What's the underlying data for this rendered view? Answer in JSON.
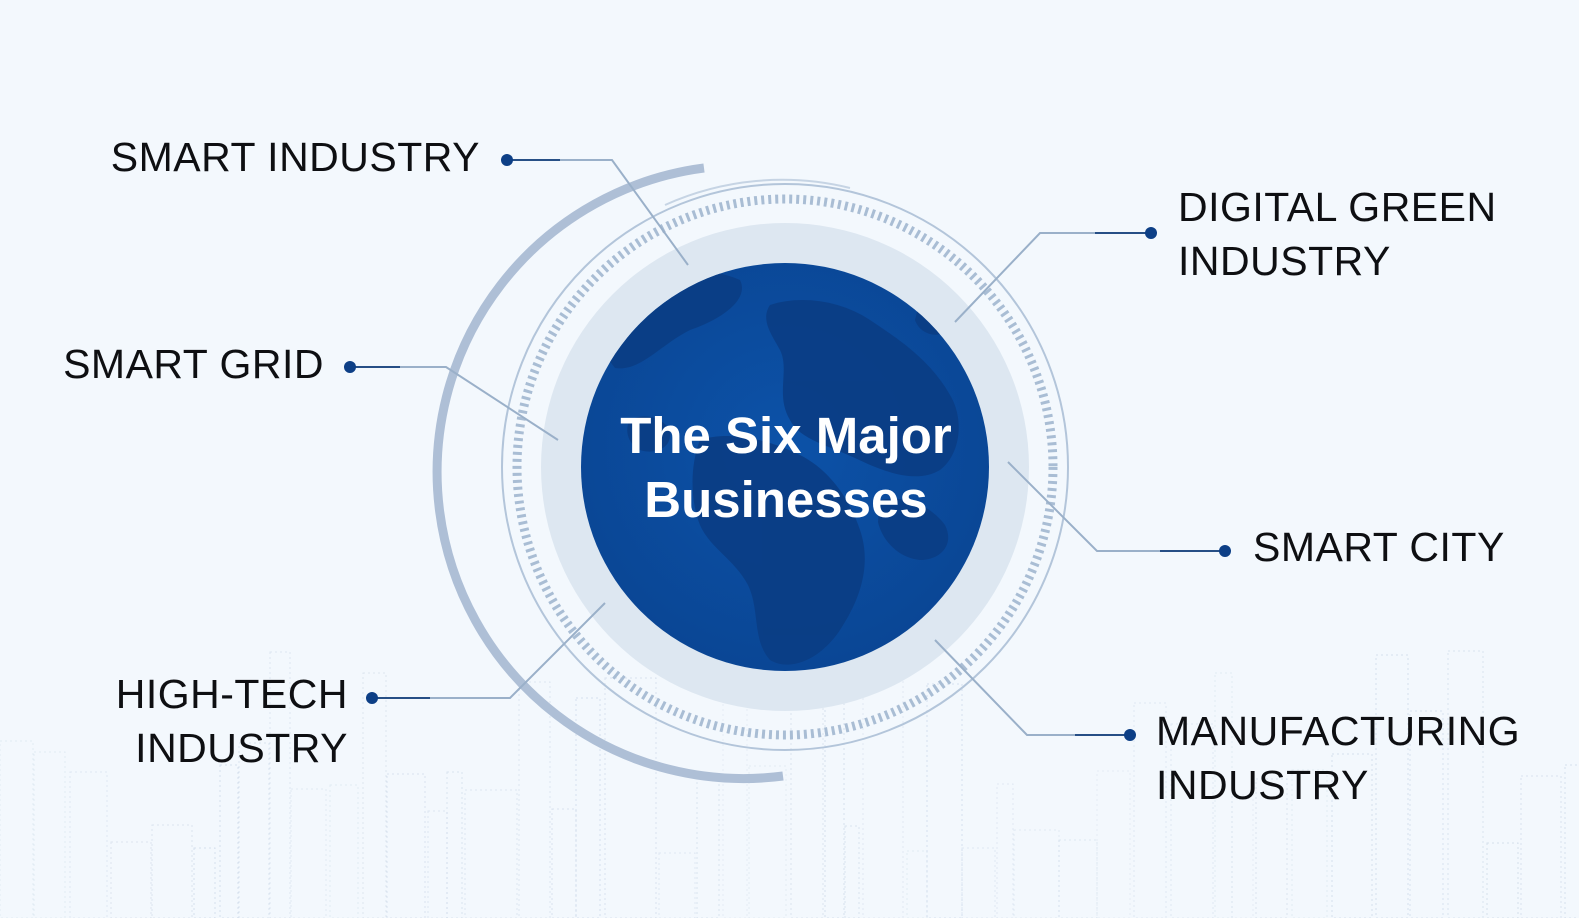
{
  "center": {
    "line1": "The Six Major",
    "line2": "Businesses"
  },
  "items": [
    {
      "id": "smart-industry",
      "lines": [
        "SMART INDUSTRY"
      ]
    },
    {
      "id": "smart-grid",
      "lines": [
        "SMART GRID"
      ]
    },
    {
      "id": "high-tech-industry",
      "lines": [
        "HIGH-TECH",
        "INDUSTRY"
      ]
    },
    {
      "id": "digital-green-industry",
      "lines": [
        "DIGITAL GREEN",
        "INDUSTRY"
      ]
    },
    {
      "id": "smart-city",
      "lines": [
        "SMART CITY"
      ]
    },
    {
      "id": "manufacturing-industry",
      "lines": [
        "MANUFACTURING",
        "INDUSTRY"
      ]
    }
  ],
  "colors": {
    "background": "#f3f8fd",
    "globe": "#0b4a9c",
    "globe_land": "#0a3f88",
    "ring_light": "#dde7f1",
    "ring_accent": "#aebfd6",
    "connector": "#9ab0c9",
    "dot": "#0d3f86",
    "label_text": "#0e0f12",
    "title_text": "#ffffff"
  }
}
